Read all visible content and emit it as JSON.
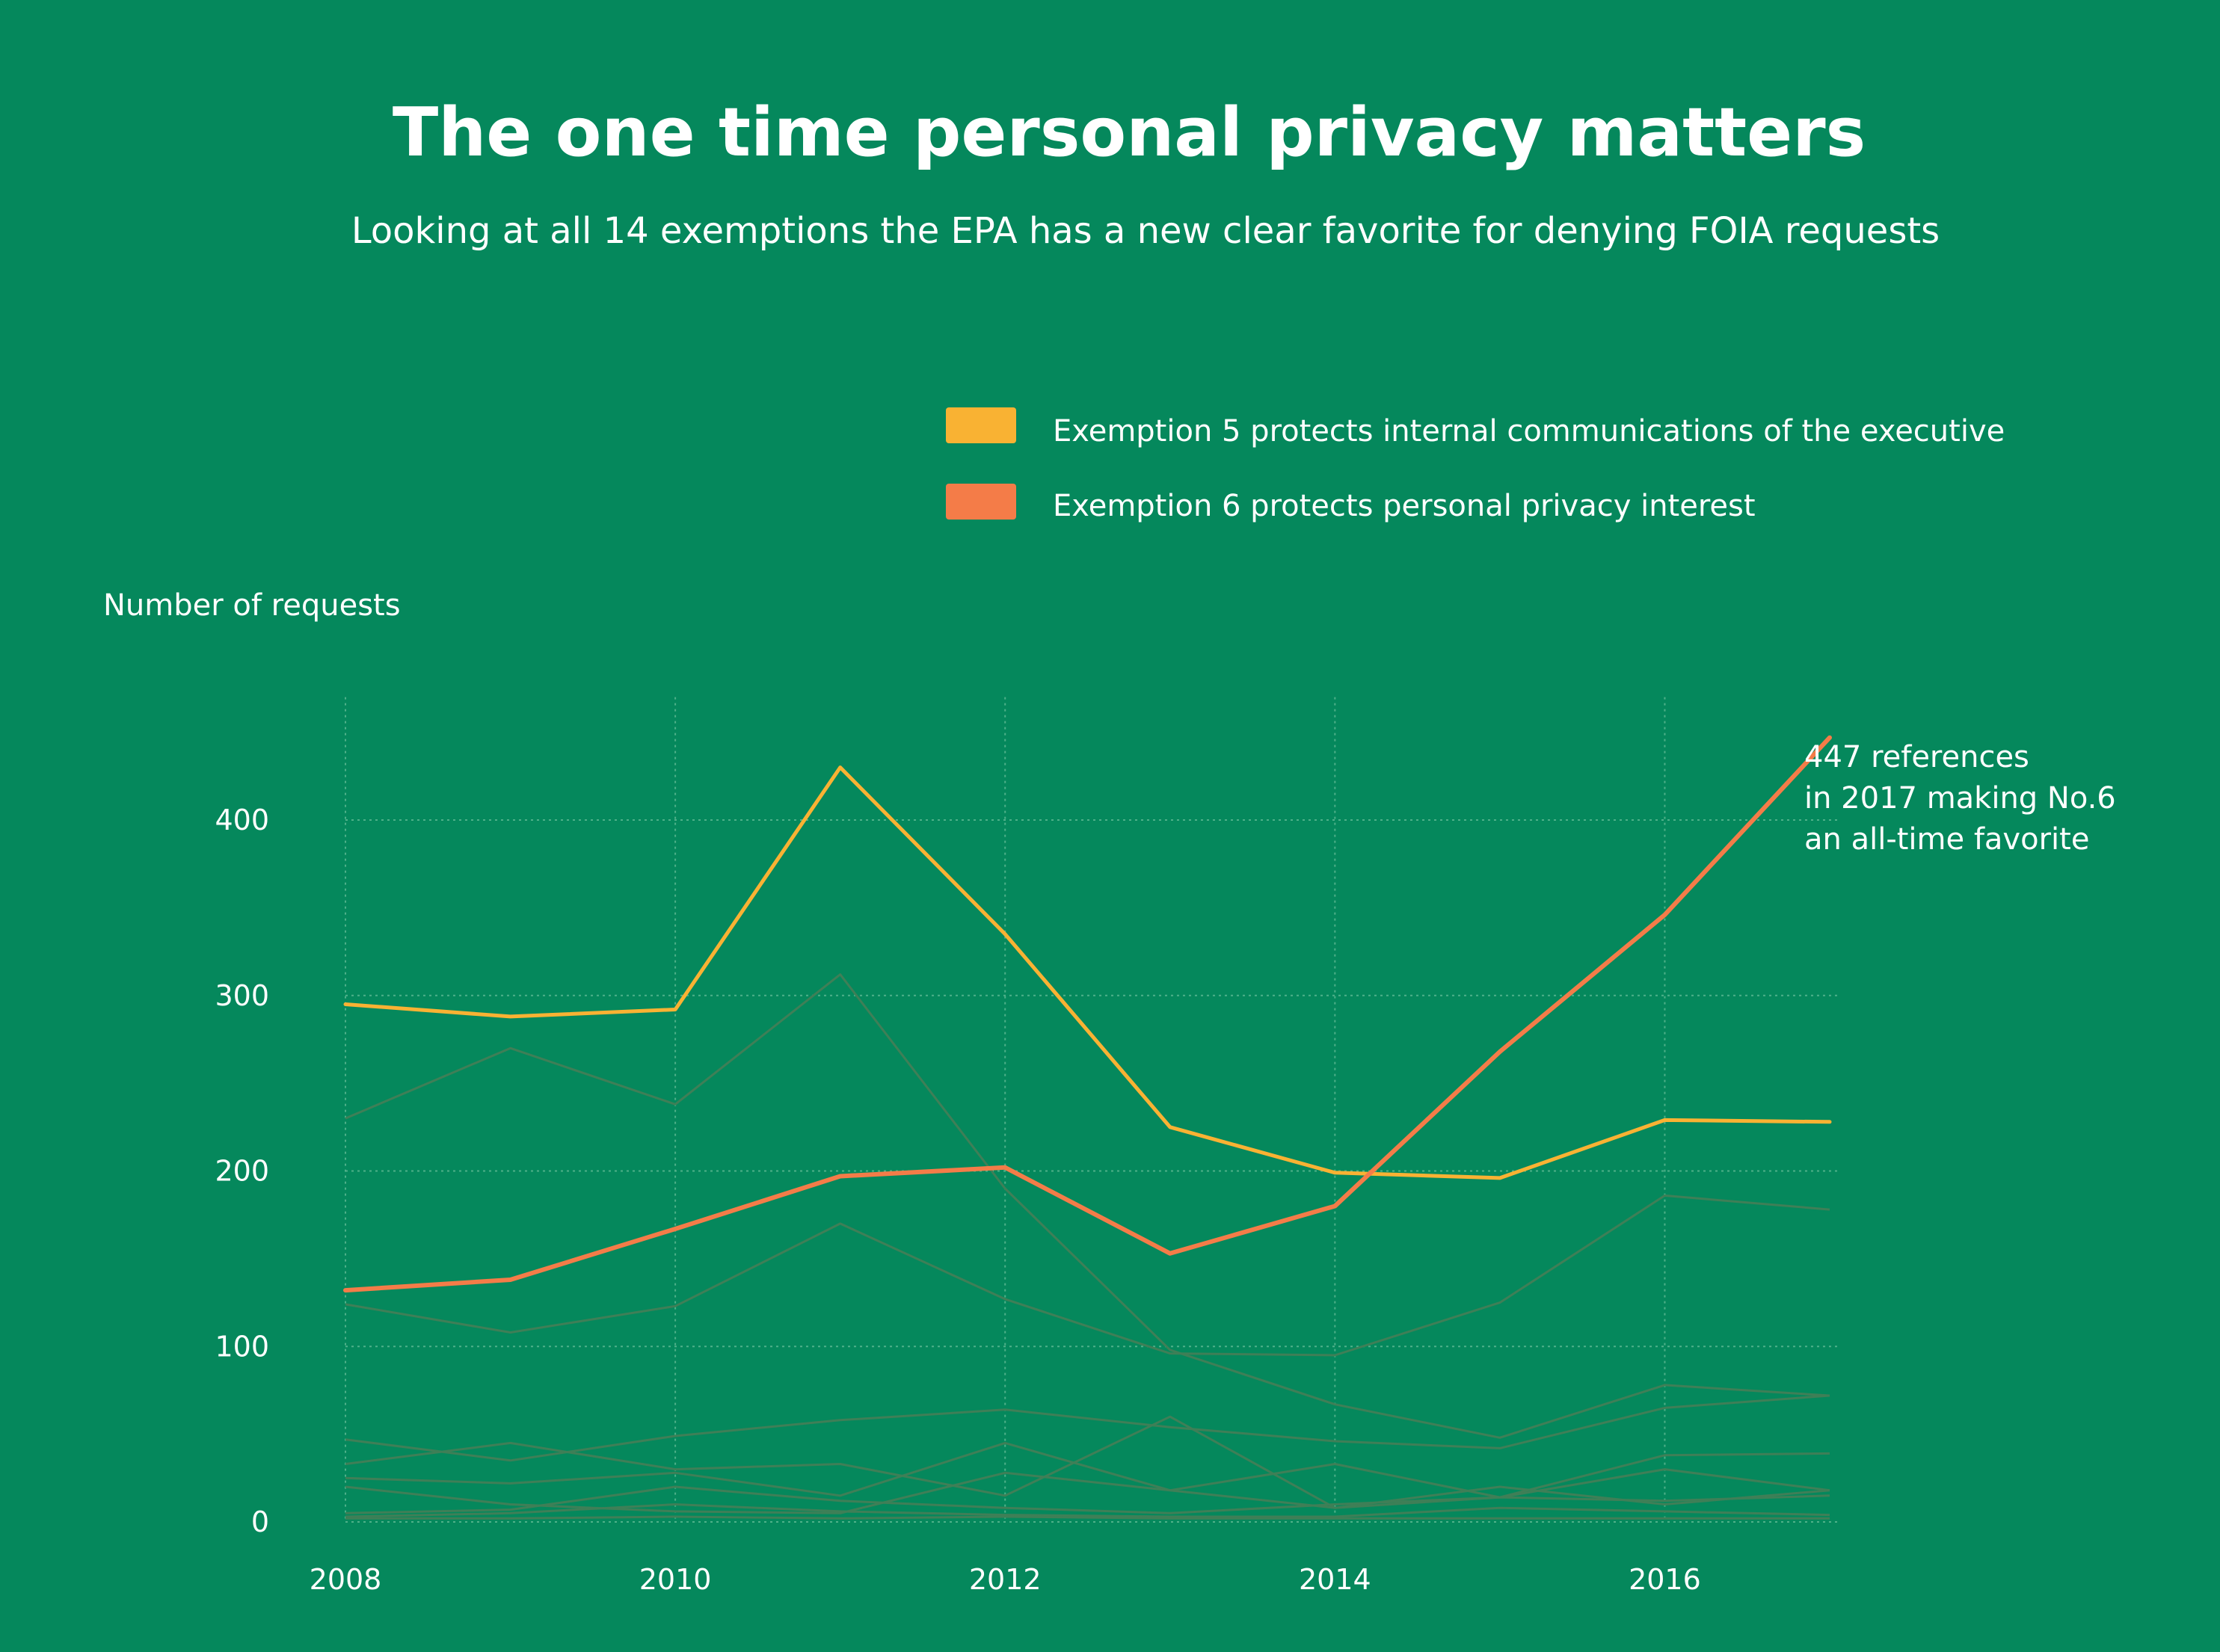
{
  "chart_data": {
    "type": "line",
    "title": "The one time personal privacy matters",
    "subtitle": "Looking at all 14 exemptions the EPA has a new clear favorite for denying FOIA requests",
    "ylabel": "Number of requests",
    "xlabel": "",
    "x": [
      2008,
      2009,
      2010,
      2011,
      2012,
      2013,
      2014,
      2015,
      2016,
      2017
    ],
    "xticks": [
      "2008",
      "2010",
      "2012",
      "2014",
      "2016"
    ],
    "xtick_values": [
      2008,
      2010,
      2012,
      2014,
      2016
    ],
    "yticks": [
      "0",
      "100",
      "200",
      "300",
      "400"
    ],
    "ytick_values": [
      0,
      100,
      200,
      300,
      400
    ],
    "xlim": [
      2008,
      2017
    ],
    "ylim": [
      0,
      470
    ],
    "grid": true,
    "legend": "top-right",
    "highlighted_series": [
      {
        "name": "Exemption 5 protects internal communications of the executive",
        "color": "#f9b233",
        "values": [
          295,
          288,
          292,
          430,
          335,
          225,
          199,
          196,
          229,
          228
        ]
      },
      {
        "name": "Exemption 6 protects personal privacy interest",
        "color": "#f47c48",
        "values": [
          132,
          138,
          167,
          197,
          202,
          153,
          180,
          268,
          346,
          447
        ]
      }
    ],
    "background_series_color": "#3f7f57",
    "background_series": [
      {
        "values": [
          230,
          270,
          238,
          312,
          190,
          98,
          67,
          48,
          78,
          72
        ]
      },
      {
        "values": [
          124,
          108,
          123,
          170,
          127,
          96,
          95,
          125,
          186,
          178
        ]
      },
      {
        "values": [
          47,
          35,
          49,
          58,
          64,
          54,
          46,
          42,
          65,
          72
        ]
      },
      {
        "values": [
          33,
          45,
          30,
          33,
          15,
          60,
          8,
          14,
          38,
          39
        ]
      },
      {
        "values": [
          25,
          22,
          28,
          15,
          45,
          18,
          33,
          14,
          30,
          18
        ]
      },
      {
        "values": [
          20,
          10,
          6,
          5,
          28,
          18,
          8,
          20,
          10,
          18
        ]
      },
      {
        "values": [
          5,
          7,
          20,
          12,
          8,
          5,
          10,
          14,
          12,
          15
        ]
      },
      {
        "values": [
          3,
          5,
          10,
          6,
          4,
          3,
          3,
          8,
          6,
          4
        ]
      },
      {
        "values": [
          2,
          2,
          3,
          2,
          3,
          2,
          2,
          2,
          2,
          2
        ]
      }
    ],
    "annotation": {
      "lines": [
        "447 references",
        "in 2017 making No.6",
        "an all-time favorite"
      ],
      "x": 2017,
      "y": 447
    }
  }
}
